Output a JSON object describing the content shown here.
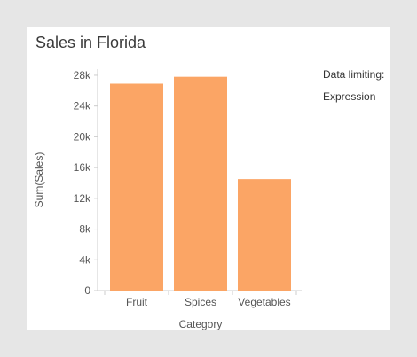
{
  "chart_data": {
    "type": "bar",
    "title": "Sales in Florida",
    "xlabel": "Category",
    "ylabel": "Sum(Sales)",
    "categories": [
      "Fruit",
      "Spices",
      "Vegetables"
    ],
    "values": [
      26900,
      27800,
      14500
    ],
    "yticks": [
      "0",
      "4k",
      "8k",
      "12k",
      "16k",
      "20k",
      "24k",
      "28k"
    ],
    "ylim": [
      0,
      28800
    ],
    "bar_color": "#fba565",
    "legend": {
      "placement": "right",
      "lines": [
        "Data limiting:",
        "Expression"
      ]
    },
    "grid": false
  }
}
